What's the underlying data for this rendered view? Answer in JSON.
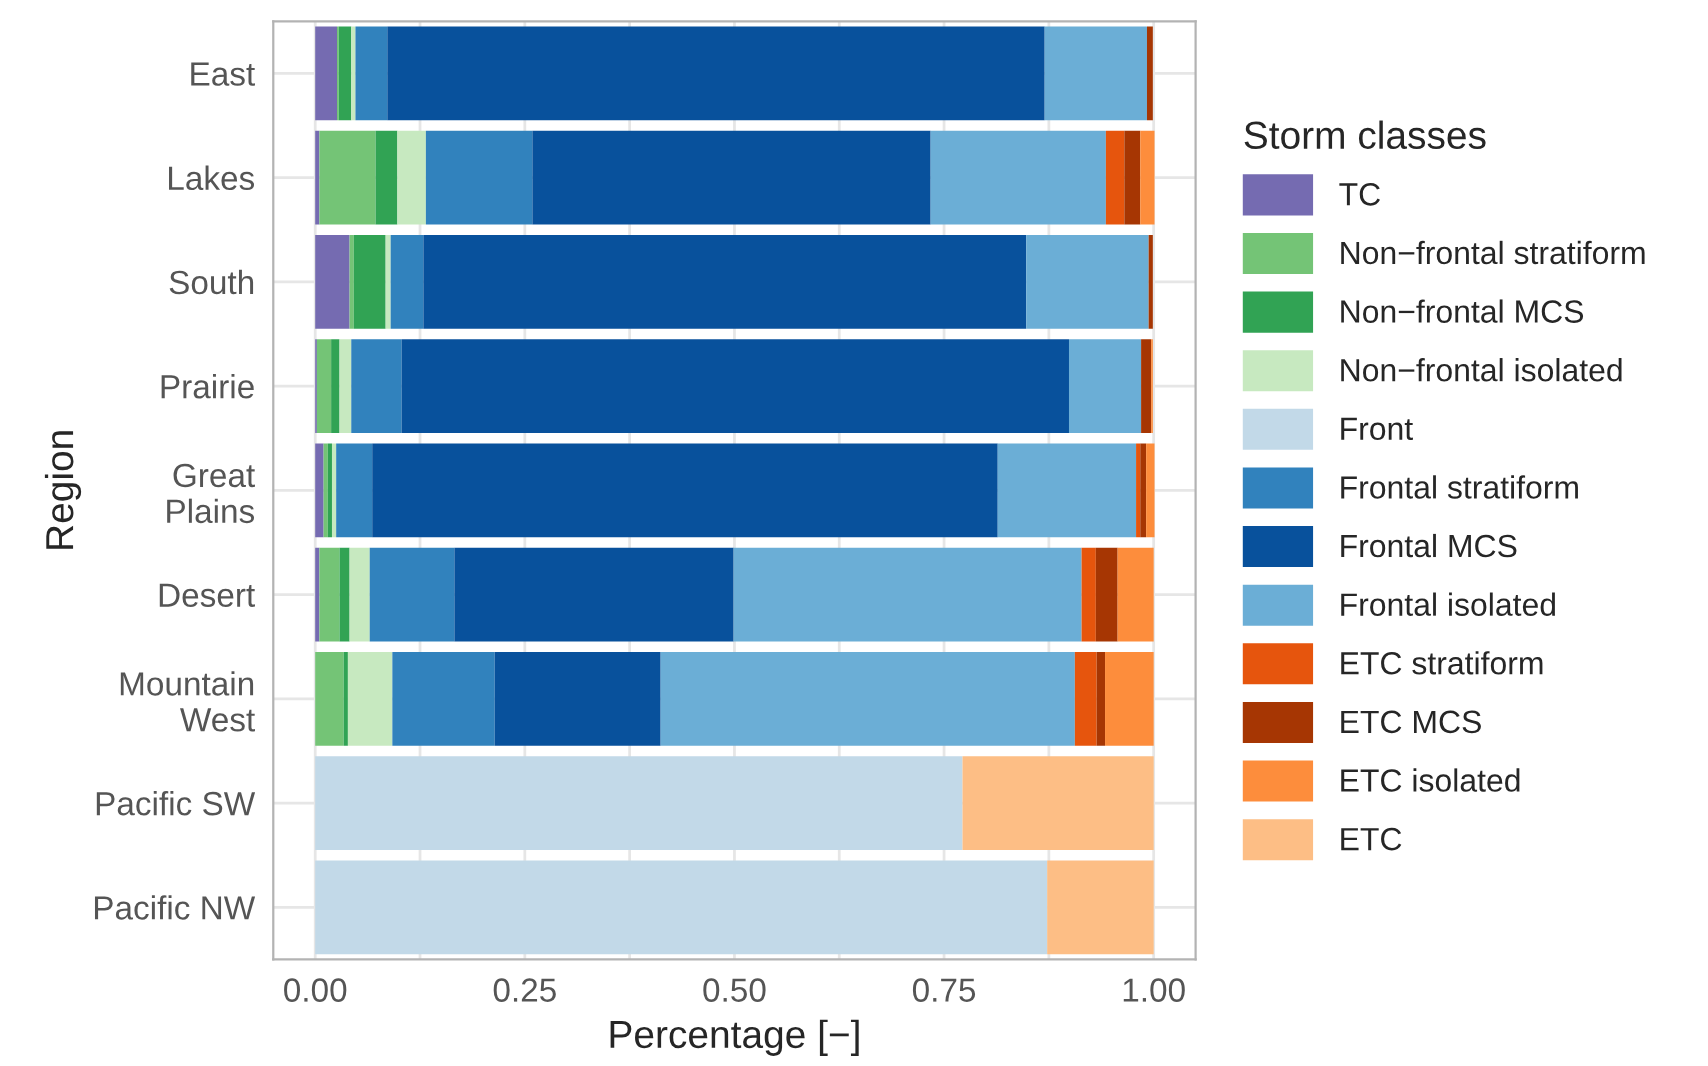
{
  "chart_data": {
    "type": "bar",
    "orientation": "horizontal",
    "stacked": true,
    "xlabel": "Percentage [−]",
    "ylabel": "Region",
    "legend_title": "Storm classes",
    "legend": "right",
    "grid": true,
    "categories": [
      "East",
      "Lakes",
      "South",
      "Prairie",
      "Great\nPlains",
      "Desert",
      "Mountain\nWest",
      "Pacific SW",
      "Pacific NW"
    ],
    "xlim": [
      -0.05,
      1.05
    ],
    "xticks": [
      {
        "value": 0,
        "label": "0.00"
      },
      {
        "value": 0.125,
        "label": null
      },
      {
        "value": 0.25,
        "label": "0.25"
      },
      {
        "value": 0.375,
        "label": null
      },
      {
        "value": 0.5,
        "label": "0.50"
      },
      {
        "value": 0.625,
        "label": null
      },
      {
        "value": 0.75,
        "label": "0.75"
      },
      {
        "value": 0.875,
        "label": null
      },
      {
        "value": 1,
        "label": "1.00"
      }
    ],
    "series": [
      {
        "name": "TC",
        "color": "#756bb1",
        "values": [
          0.026,
          0.005,
          0.041,
          0.002,
          0.01,
          0.005,
          0,
          0,
          0
        ]
      },
      {
        "name": "Non−frontal stratiform",
        "color": "#74c476",
        "values": [
          0.002,
          0.067,
          0.005,
          0.017,
          0.005,
          0.024,
          0.034,
          0,
          0
        ]
      },
      {
        "name": "Non−frontal MCS",
        "color": "#31a354",
        "values": [
          0.015,
          0.026,
          0.038,
          0.01,
          0.005,
          0.012,
          0.005,
          0,
          0
        ]
      },
      {
        "name": "Non−frontal isolated",
        "color": "#c7e9c0",
        "values": [
          0.005,
          0.034,
          0.006,
          0.014,
          0.005,
          0.024,
          0.053,
          0,
          0
        ]
      },
      {
        "name": "Front",
        "color": "#c2d9e8",
        "values": [
          0,
          0,
          0,
          0,
          0,
          0,
          0,
          0.772,
          0.873
        ]
      },
      {
        "name": "Frontal stratiform",
        "color": "#3182bd",
        "values": [
          0.038,
          0.127,
          0.039,
          0.06,
          0.043,
          0.101,
          0.122,
          0,
          0
        ]
      },
      {
        "name": "Frontal MCS",
        "color": "#08519c",
        "values": [
          0.784,
          0.475,
          0.719,
          0.796,
          0.746,
          0.333,
          0.198,
          0,
          0
        ]
      },
      {
        "name": "Frontal isolated",
        "color": "#6baed6",
        "values": [
          0.122,
          0.209,
          0.146,
          0.086,
          0.165,
          0.415,
          0.494,
          0,
          0
        ]
      },
      {
        "name": "ETC stratiform",
        "color": "#e6550d",
        "values": [
          0,
          0.022,
          0,
          0,
          0.005,
          0.017,
          0.026,
          0,
          0
        ]
      },
      {
        "name": "ETC MCS",
        "color": "#a63603",
        "values": [
          0.007,
          0.019,
          0.005,
          0.012,
          0.007,
          0.026,
          0.01,
          0,
          0
        ]
      },
      {
        "name": "ETC isolated",
        "color": "#fd8d3c",
        "values": [
          0,
          0.017,
          0,
          0.002,
          0.01,
          0.043,
          0.058,
          0,
          0
        ]
      },
      {
        "name": "ETC",
        "color": "#fdbe85",
        "values": [
          0,
          0,
          0,
          0,
          0,
          0,
          0,
          0.228,
          0.127
        ]
      }
    ]
  }
}
